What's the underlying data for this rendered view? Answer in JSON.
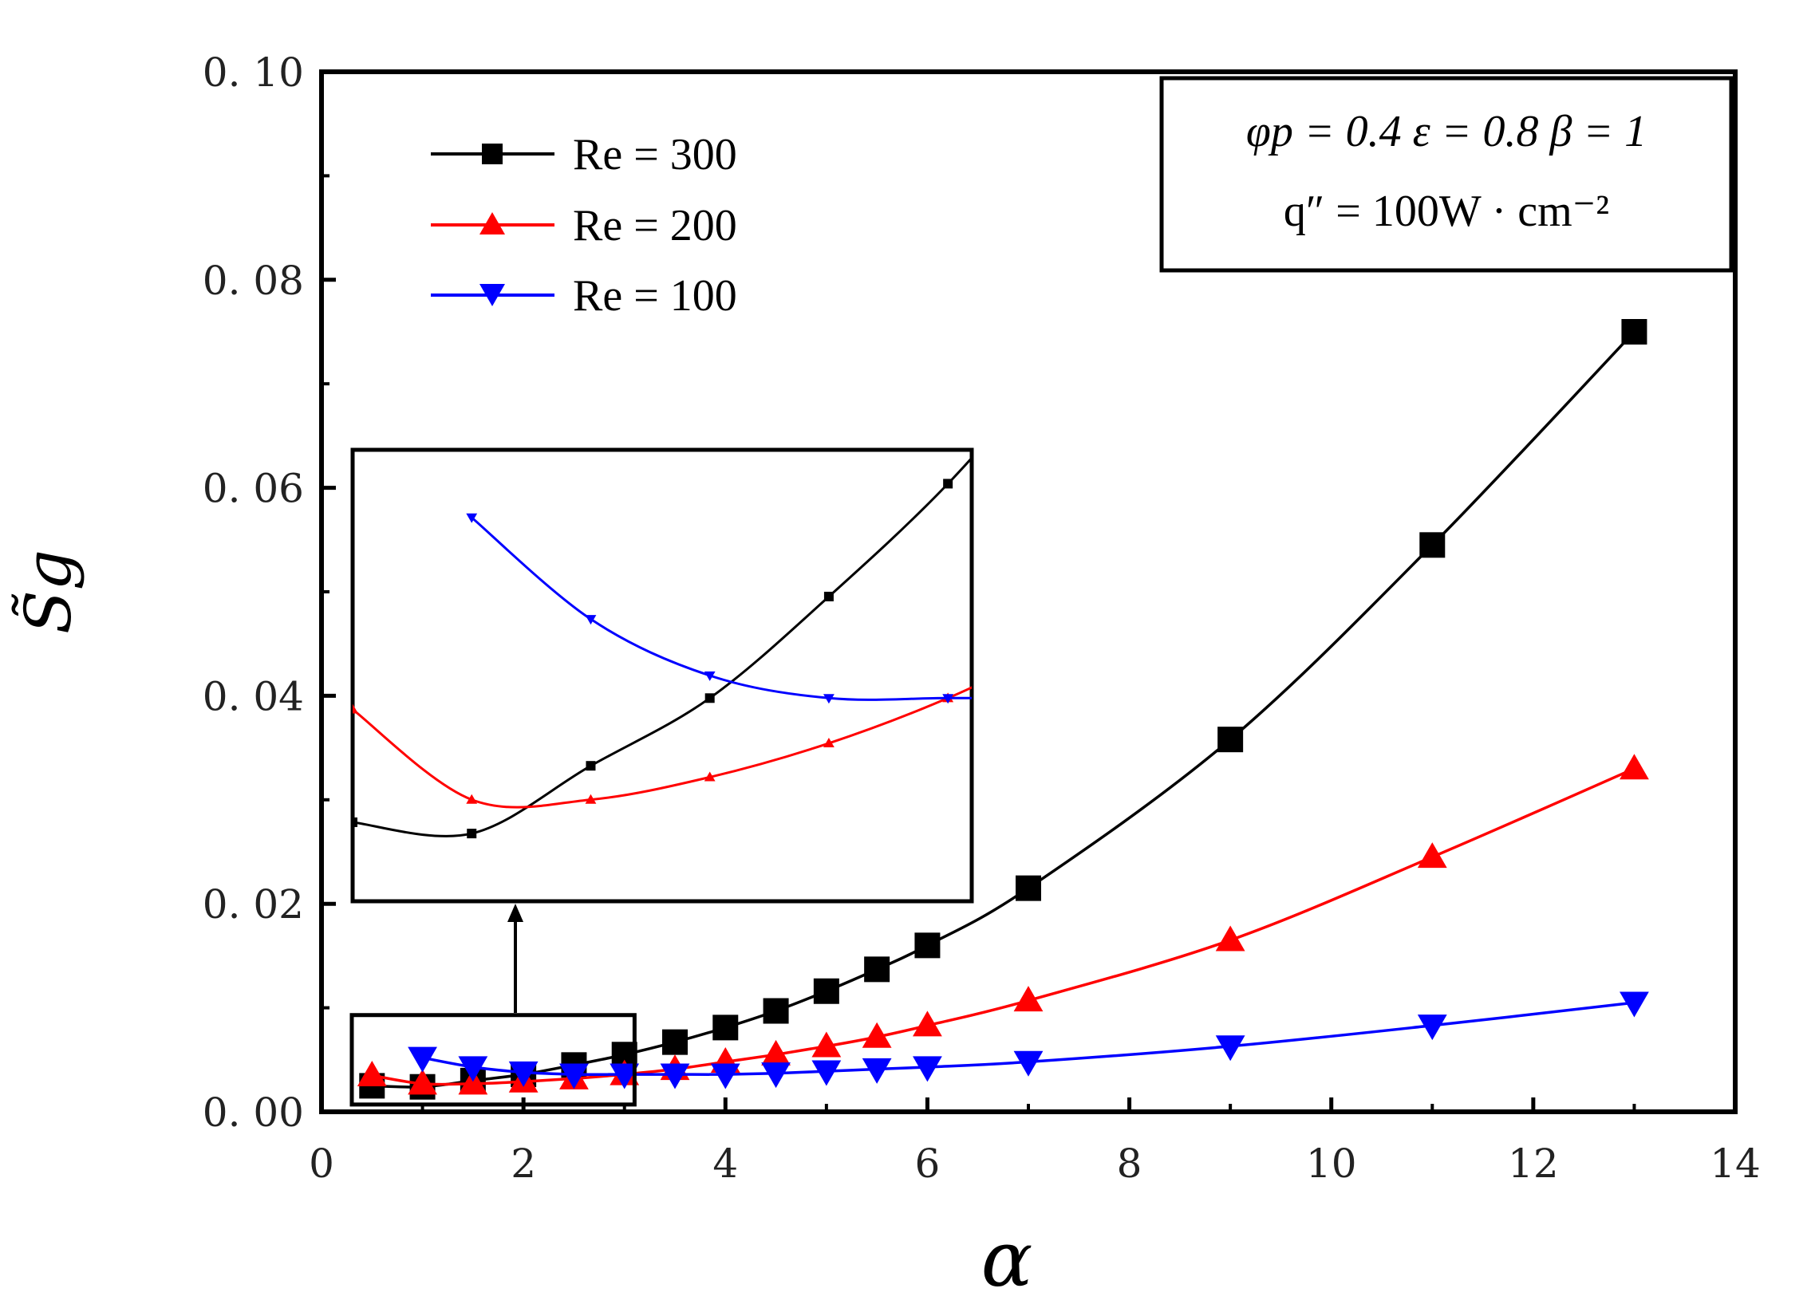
{
  "chart_data": {
    "type": "line",
    "xlabel": "α",
    "ylabel": "S̃g",
    "xlim": [
      0,
      14
    ],
    "ylim": [
      0,
      0.1
    ],
    "xticks": [
      "0",
      "2",
      "4",
      "6",
      "8",
      "10",
      "12",
      "14"
    ],
    "yticks": [
      "0. 00",
      "0. 02",
      "0. 04",
      "0. 06",
      "0. 08",
      "0. 10"
    ],
    "annotation": {
      "line1": "φp = 0.4  ε = 0.8  β = 1",
      "line2": "q″ = 100W · cm⁻²"
    },
    "series": [
      {
        "name": "Re = 300",
        "color": "#000000",
        "marker": "square",
        "x": [
          0.5,
          1,
          1.5,
          2,
          2.5,
          3,
          3.5,
          4,
          4.5,
          5,
          5.5,
          6,
          7,
          9,
          11,
          13
        ],
        "y": [
          0.0025,
          0.0024,
          0.003,
          0.0036,
          0.0045,
          0.0055,
          0.0067,
          0.0081,
          0.0097,
          0.0116,
          0.0137,
          0.016,
          0.0215,
          0.0358,
          0.0545,
          0.075
        ]
      },
      {
        "name": "Re = 200",
        "color": "#ff0000",
        "marker": "triangle-up",
        "x": [
          0.5,
          1,
          1.5,
          2,
          2.5,
          3,
          3.5,
          4,
          4.5,
          5,
          5.5,
          6,
          7,
          9,
          11,
          13
        ],
        "y": [
          0.0035,
          0.0027,
          0.0027,
          0.0029,
          0.0032,
          0.0036,
          0.0041,
          0.0048,
          0.0055,
          0.0063,
          0.0072,
          0.0083,
          0.0107,
          0.0165,
          0.0245,
          0.033
        ]
      },
      {
        "name": "Re = 100",
        "color": "#0000ff",
        "marker": "triangle-down",
        "x": [
          1,
          1.5,
          2,
          2.5,
          3,
          3.5,
          4,
          4.5,
          5,
          5.5,
          6,
          7,
          9,
          11,
          13
        ],
        "y": [
          0.0052,
          0.0043,
          0.0038,
          0.0036,
          0.0036,
          0.0036,
          0.0036,
          0.0037,
          0.0039,
          0.0041,
          0.0043,
          0.0048,
          0.0063,
          0.0083,
          0.0105
        ]
      }
    ],
    "inset": {
      "xlim": [
        0.5,
        3.1
      ],
      "ylim": [
        0.0018,
        0.0058
      ],
      "source_region": {
        "x": [
          0.3,
          3.1
        ],
        "y": [
          0.0007,
          0.0093
        ]
      }
    }
  }
}
